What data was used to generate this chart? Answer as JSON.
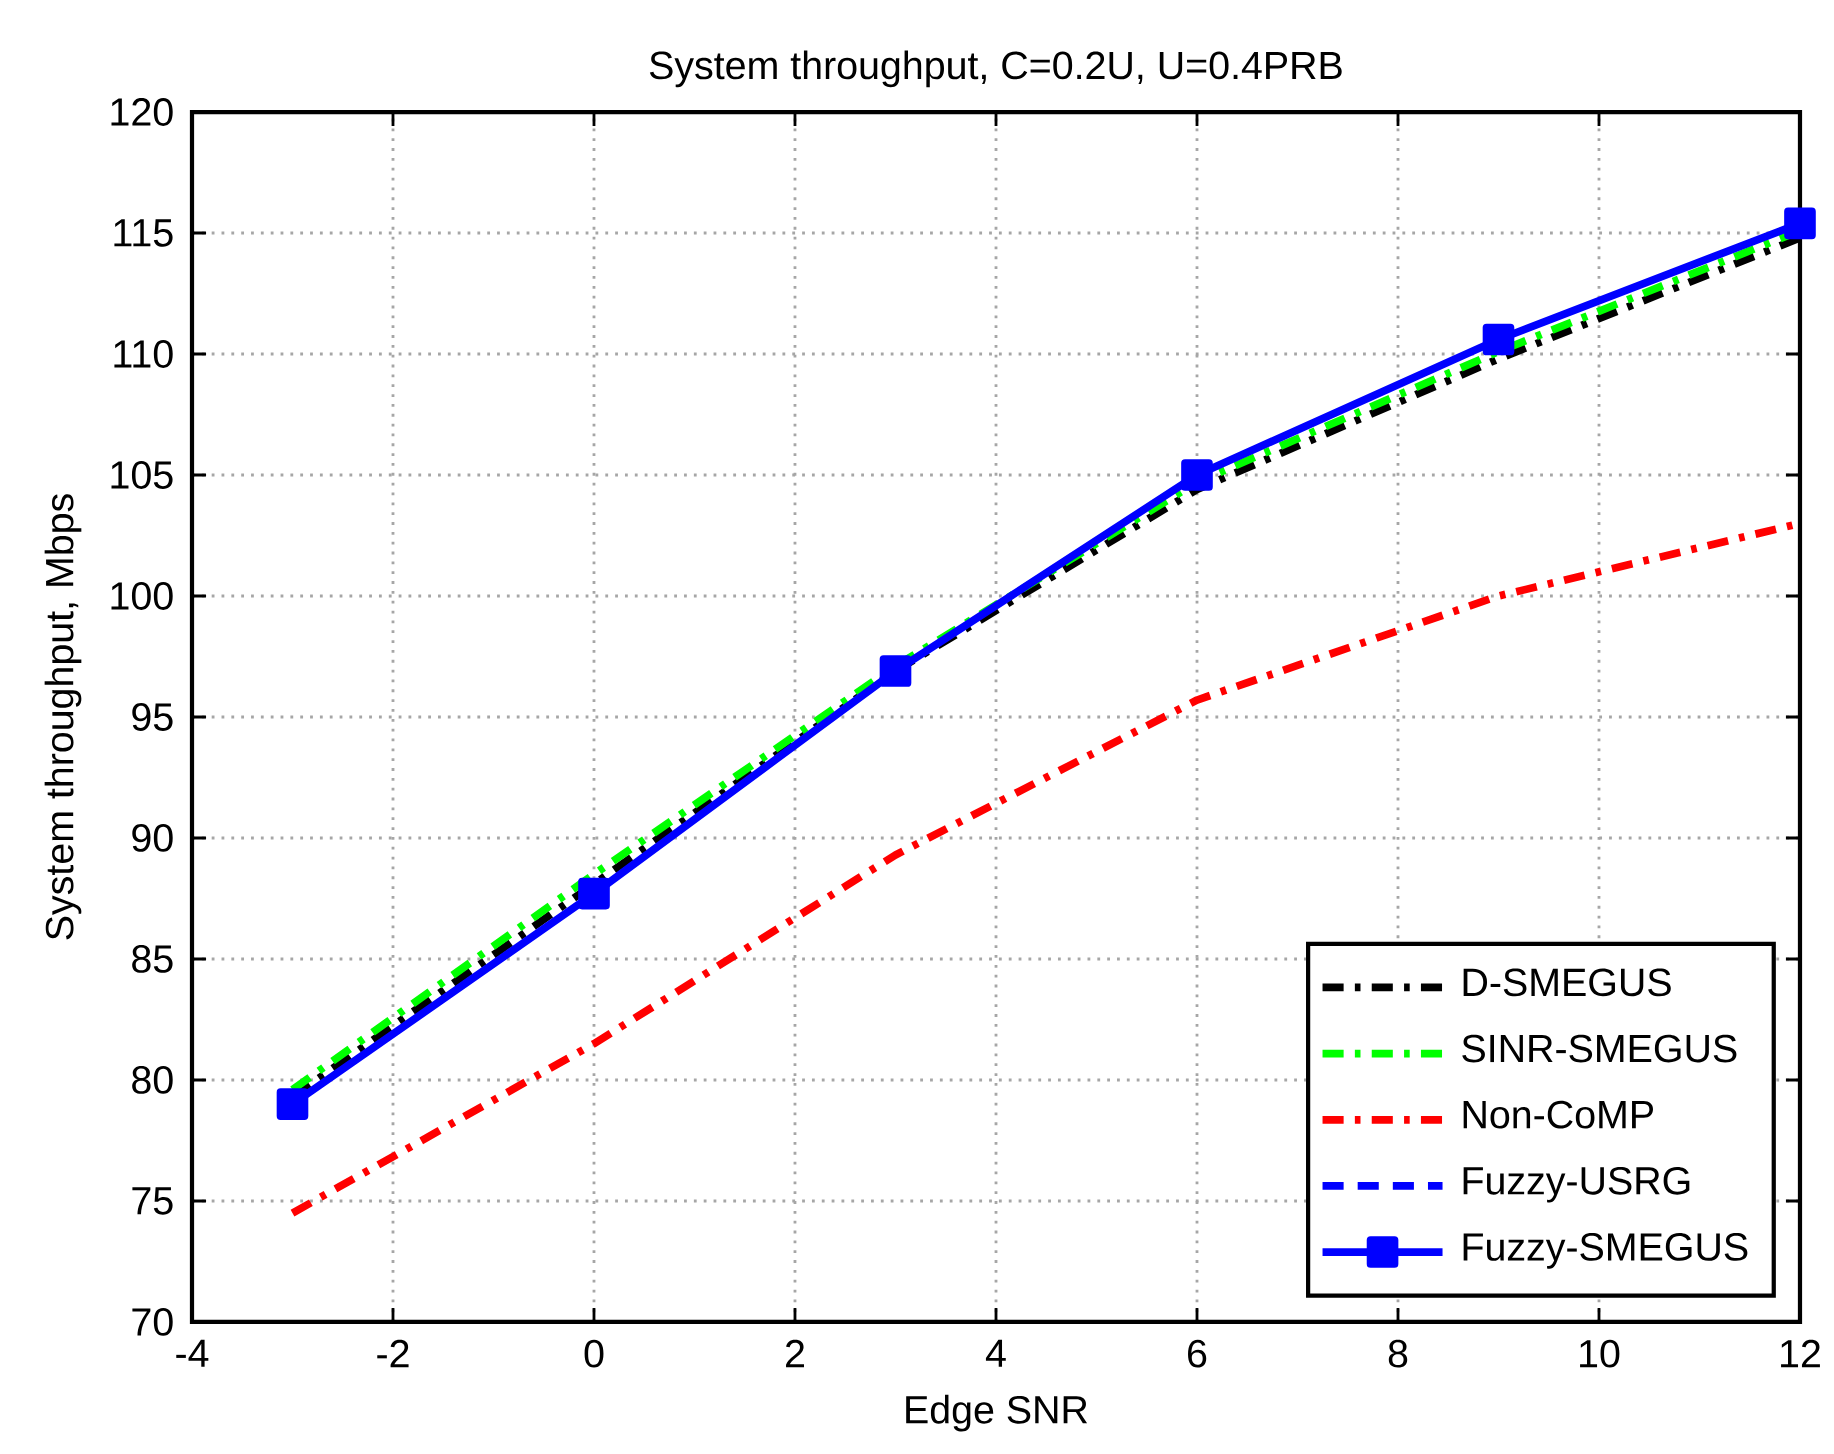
{
  "chart_data": {
    "type": "line",
    "title": "System throughput, C=0.2U, U=0.4PRB",
    "xlabel": "Edge SNR",
    "ylabel": "System throughput, Mbps",
    "x": [
      -3,
      0,
      3,
      6,
      9,
      12
    ],
    "series": [
      {
        "name": "D-SMEGUS",
        "color": "#000000",
        "line_style": "dashdot",
        "values": [
          79.3,
          88.1,
          96.9,
          104.4,
          109.8,
          114.8
        ]
      },
      {
        "name": "SINR-SMEGUS",
        "color": "#00ff00",
        "line_style": "dashdot",
        "values": [
          79.6,
          88.5,
          97.1,
          104.7,
          110.1,
          115.1
        ]
      },
      {
        "name": "Non-CoMP",
        "color": "#ff0000",
        "line_style": "dashdot",
        "values": [
          74.5,
          81.5,
          89.3,
          95.7,
          100.0,
          103.0
        ]
      },
      {
        "name": "Fuzzy-USRG",
        "color": "#0000ff",
        "line_style": "dashed",
        "values": [
          null,
          null,
          null,
          null,
          null,
          null
        ]
      },
      {
        "name": "Fuzzy-SMEGUS",
        "color": "#0000ff",
        "line_style": "solid",
        "marker": "square",
        "values": [
          79.0,
          87.7,
          96.9,
          105.0,
          110.6,
          115.4
        ]
      }
    ],
    "xlim": [
      -4,
      12
    ],
    "xticks": [
      -4,
      -2,
      0,
      2,
      4,
      6,
      8,
      10,
      12
    ],
    "ylim": [
      70,
      120
    ],
    "yticks": [
      70,
      75,
      80,
      85,
      90,
      95,
      100,
      105,
      110,
      115,
      120
    ],
    "grid": true,
    "legend": "bottom right"
  }
}
